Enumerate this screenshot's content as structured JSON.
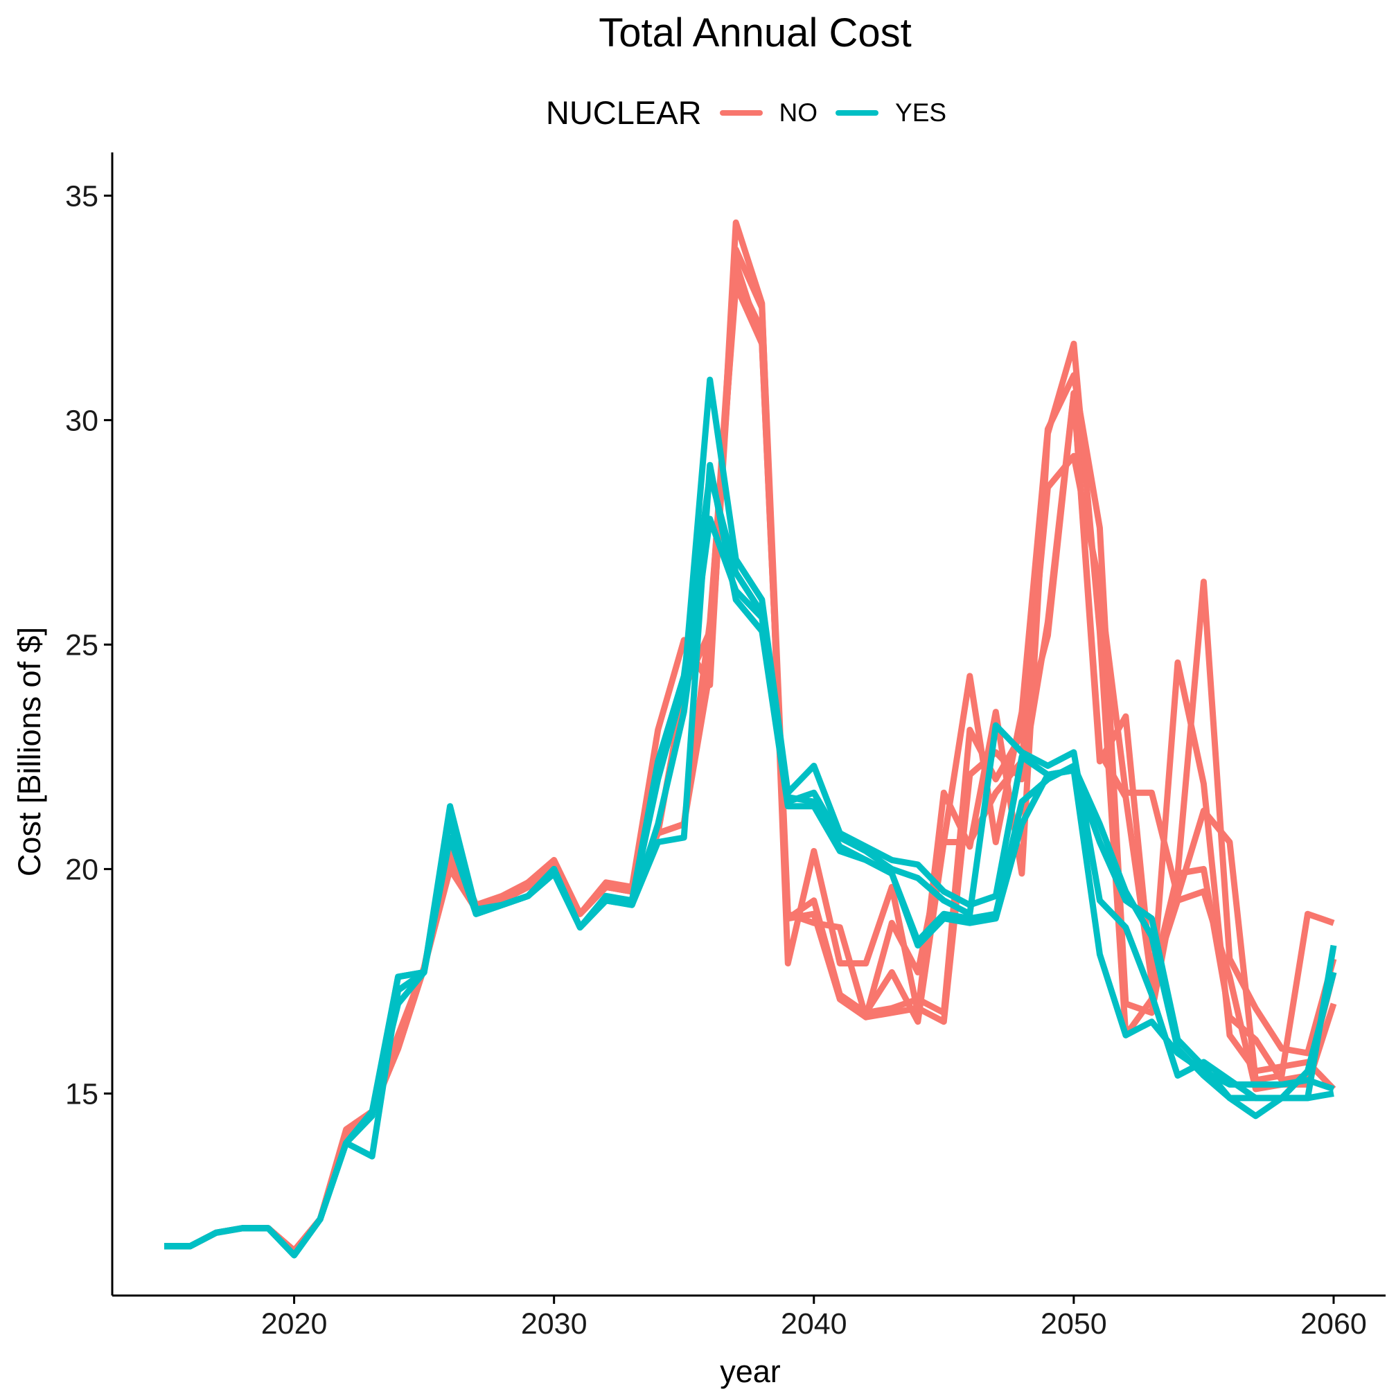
{
  "chart_data": {
    "type": "line",
    "title": "Total Annual Cost",
    "xlabel": "year",
    "ylabel": "Cost [Billions of $]",
    "xlim": [
      2013,
      2062
    ],
    "ylim": [
      10.5,
      35.5
    ],
    "xticks": [
      2020,
      2030,
      2040,
      2050,
      2060
    ],
    "yticks": [
      15,
      20,
      25,
      30,
      35
    ],
    "grid": false,
    "legend": {
      "title": "NUCLEAR",
      "position": "top",
      "entries": [
        {
          "label": "NO",
          "color": "#F8766D"
        },
        {
          "label": "YES",
          "color": "#00BFC4"
        }
      ]
    },
    "x": [
      2015,
      2016,
      2017,
      2018,
      2019,
      2020,
      2021,
      2022,
      2023,
      2024,
      2025,
      2026,
      2027,
      2028,
      2029,
      2030,
      2031,
      2032,
      2033,
      2034,
      2035,
      2036,
      2037,
      2038,
      2039,
      2040,
      2041,
      2042,
      2043,
      2044,
      2045,
      2046,
      2047,
      2048,
      2049,
      2050,
      2051,
      2052,
      2053,
      2054,
      2055,
      2056,
      2057,
      2058,
      2059,
      2060
    ],
    "series": [
      {
        "group": "NO",
        "color": "#F8766D",
        "values": [
          11.6,
          11.6,
          11.9,
          12.0,
          12.0,
          11.5,
          12.2,
          14.2,
          14.6,
          16.0,
          17.8,
          20.6,
          19.2,
          19.4,
          19.7,
          20.2,
          19.0,
          19.7,
          19.6,
          23.1,
          25.1,
          24.1,
          34.4,
          32.6,
          17.9,
          20.4,
          17.9,
          17.9,
          19.6,
          16.8,
          21.7,
          20.5,
          23.5,
          19.9,
          29.7,
          31.7,
          25.3,
          16.3,
          17.1,
          24.6,
          21.9,
          16.3,
          15.5,
          15.6,
          15.7,
          15.1
        ]
      },
      {
        "group": "NO",
        "color": "#F8766D",
        "values": [
          11.6,
          11.6,
          11.9,
          12.0,
          12.0,
          11.5,
          12.2,
          14.1,
          14.6,
          16.2,
          17.8,
          20.3,
          19.2,
          19.3,
          19.7,
          20.1,
          19.0,
          19.6,
          19.5,
          20.8,
          24.0,
          25.3,
          33.8,
          32.5,
          19.0,
          18.8,
          18.7,
          16.7,
          18.8,
          17.7,
          20.6,
          24.3,
          20.6,
          23.5,
          29.8,
          31.0,
          27.6,
          17.0,
          16.8,
          19.9,
          26.4,
          18.0,
          16.9,
          16.0,
          15.9,
          18.0
        ]
      },
      {
        "group": "NO",
        "color": "#F8766D",
        "values": [
          11.6,
          11.6,
          11.9,
          12.0,
          12.0,
          11.5,
          12.2,
          14.1,
          14.6,
          16.3,
          17.8,
          20.2,
          19.2,
          19.3,
          19.6,
          20.1,
          19.0,
          19.6,
          19.5,
          20.8,
          21.0,
          24.4,
          33.5,
          31.7,
          18.9,
          19.3,
          17.2,
          16.8,
          16.9,
          17.1,
          16.8,
          23.1,
          22.0,
          23.0,
          25.2,
          30.6,
          22.4,
          23.4,
          17.5,
          19.9,
          20.0,
          16.7,
          16.2,
          15.3,
          15.4,
          17.7
        ]
      },
      {
        "group": "NO",
        "color": "#F8766D",
        "values": [
          11.6,
          11.6,
          11.9,
          12.0,
          12.0,
          11.5,
          12.2,
          14.1,
          14.6,
          16.0,
          17.8,
          20.1,
          19.1,
          19.3,
          19.6,
          20.1,
          19.0,
          19.6,
          19.5,
          20.8,
          21.0,
          25.0,
          33.2,
          32.0,
          18.9,
          19.0,
          17.2,
          16.8,
          17.7,
          16.6,
          20.6,
          20.6,
          21.7,
          22.4,
          28.5,
          29.2,
          26.3,
          21.7,
          21.7,
          19.4,
          21.3,
          20.6,
          15.3,
          15.4,
          19.0,
          18.8
        ]
      },
      {
        "group": "NO",
        "color": "#F8766D",
        "values": [
          11.6,
          11.6,
          11.9,
          12.0,
          12.0,
          11.5,
          12.2,
          14.1,
          14.6,
          16.0,
          17.8,
          20.0,
          19.1,
          19.3,
          19.6,
          20.1,
          19.0,
          19.6,
          19.5,
          20.8,
          21.0,
          25.5,
          33.0,
          31.7,
          18.9,
          19.0,
          17.1,
          16.7,
          16.8,
          16.9,
          16.6,
          22.1,
          22.6,
          22.0,
          25.5,
          30.6,
          22.6,
          21.6,
          17.5,
          19.3,
          19.5,
          17.6,
          15.1,
          15.2,
          15.2,
          17.0
        ]
      },
      {
        "group": "YES",
        "color": "#00BFC4",
        "values": [
          11.6,
          11.6,
          11.9,
          12.0,
          12.0,
          11.4,
          12.2,
          13.9,
          14.6,
          17.6,
          17.7,
          21.4,
          19.1,
          19.2,
          19.4,
          20.0,
          18.7,
          19.4,
          19.3,
          22.0,
          24.1,
          30.9,
          26.9,
          26.0,
          21.7,
          22.3,
          20.8,
          20.5,
          20.2,
          20.1,
          19.5,
          19.2,
          19.4,
          22.5,
          22.1,
          22.2,
          18.1,
          16.3,
          16.6,
          15.9,
          15.5,
          15.2,
          15.2,
          15.2,
          15.3,
          15.1
        ]
      },
      {
        "group": "YES",
        "color": "#00BFC4",
        "values": [
          11.6,
          11.6,
          11.9,
          12.0,
          12.0,
          11.4,
          12.2,
          13.9,
          14.5,
          17.6,
          17.7,
          21.3,
          19.0,
          19.2,
          19.4,
          20.0,
          18.7,
          19.3,
          19.3,
          22.4,
          24.3,
          28.8,
          26.6,
          25.7,
          21.5,
          21.7,
          20.7,
          20.4,
          20.0,
          19.8,
          19.3,
          19.0,
          23.2,
          22.6,
          22.3,
          22.6,
          19.3,
          18.7,
          17.2,
          15.4,
          15.7,
          15.3,
          14.9,
          14.9,
          14.9,
          18.3
        ]
      },
      {
        "group": "YES",
        "color": "#00BFC4",
        "values": [
          11.6,
          11.6,
          11.9,
          12.0,
          12.0,
          11.4,
          12.2,
          13.9,
          13.6,
          17.3,
          17.7,
          21.1,
          19.0,
          19.2,
          19.4,
          20.0,
          18.7,
          19.3,
          19.2,
          20.6,
          20.7,
          29.0,
          26.0,
          25.3,
          21.4,
          21.4,
          20.4,
          20.2,
          19.9,
          18.3,
          18.9,
          18.8,
          18.9,
          21.0,
          22.1,
          22.2,
          20.6,
          19.3,
          18.9,
          16.2,
          15.6,
          14.9,
          14.9,
          14.9,
          14.9,
          15.0
        ]
      },
      {
        "group": "YES",
        "color": "#00BFC4",
        "values": [
          11.6,
          11.6,
          11.9,
          12.0,
          12.0,
          11.4,
          12.2,
          13.9,
          14.6,
          17.0,
          17.7,
          20.7,
          19.0,
          19.2,
          19.4,
          19.9,
          18.7,
          19.3,
          19.2,
          21.0,
          23.5,
          27.8,
          26.2,
          25.6,
          21.6,
          21.5,
          20.5,
          20.2,
          19.9,
          18.4,
          19.0,
          18.9,
          19.0,
          21.5,
          22.0,
          22.3,
          21.0,
          19.5,
          18.5,
          16.0,
          15.4,
          14.9,
          14.5,
          14.9,
          15.5,
          17.7
        ]
      }
    ]
  }
}
